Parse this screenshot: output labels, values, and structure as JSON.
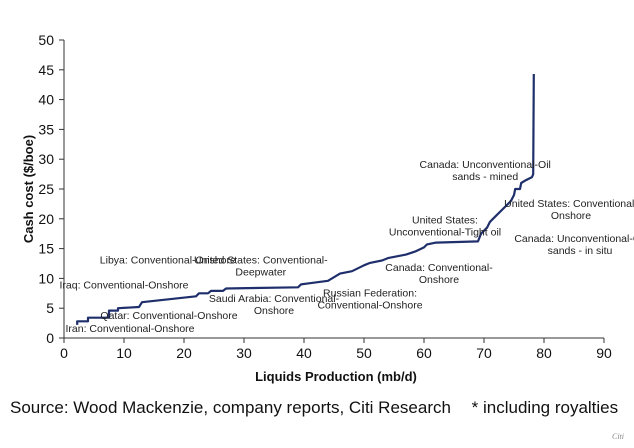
{
  "chart_data": {
    "type": "line",
    "title": "",
    "xlabel": "Liquids Production (mb/d)",
    "ylabel": "Cash cost ($/boe)",
    "xlim": [
      0,
      90
    ],
    "ylim": [
      0,
      50
    ],
    "x_ticks": [
      0,
      10,
      20,
      30,
      40,
      50,
      60,
      70,
      80,
      90
    ],
    "y_ticks": [
      0,
      5,
      10,
      15,
      20,
      25,
      30,
      35,
      40,
      45,
      50
    ],
    "grid": false,
    "line_color": "#1f2f6b",
    "series": [
      {
        "points": [
          [
            2.2,
            2.2
          ],
          [
            2.2,
            2.8
          ],
          [
            4.0,
            2.8
          ],
          [
            4.0,
            3.4
          ],
          [
            7.5,
            3.4
          ],
          [
            7.5,
            4.6
          ],
          [
            9.0,
            4.6
          ],
          [
            9.0,
            5.0
          ],
          [
            12.5,
            5.2
          ],
          [
            13.0,
            6.0
          ],
          [
            22.0,
            7.0
          ],
          [
            22.5,
            7.5
          ],
          [
            24.0,
            7.5
          ],
          [
            24.5,
            7.9
          ],
          [
            26.5,
            7.9
          ],
          [
            27.0,
            8.3
          ],
          [
            39.0,
            8.5
          ],
          [
            39.5,
            9.0
          ],
          [
            41.0,
            9.2
          ],
          [
            44.0,
            9.6
          ],
          [
            46.0,
            10.8
          ],
          [
            48.0,
            11.2
          ],
          [
            50.0,
            12.2
          ],
          [
            51.0,
            12.6
          ],
          [
            53.0,
            13.0
          ],
          [
            54.0,
            13.4
          ],
          [
            57.0,
            14.0
          ],
          [
            58.5,
            14.5
          ],
          [
            60.0,
            15.2
          ],
          [
            60.5,
            15.7
          ],
          [
            62.0,
            16.0
          ],
          [
            69.0,
            16.2
          ],
          [
            69.5,
            17.5
          ],
          [
            70.5,
            18.5
          ],
          [
            71.0,
            19.5
          ],
          [
            72.0,
            20.5
          ],
          [
            73.0,
            21.5
          ],
          [
            73.5,
            22.0
          ],
          [
            74.5,
            23.0
          ],
          [
            75.0,
            24.0
          ],
          [
            75.2,
            25.0
          ],
          [
            76.0,
            25.0
          ],
          [
            76.2,
            26.0
          ],
          [
            77.0,
            26.5
          ],
          [
            78.0,
            27.0
          ],
          [
            78.2,
            27.5
          ],
          [
            78.3,
            44.3
          ]
        ]
      }
    ],
    "annotations": [
      {
        "text": [
          "Canada: Unconventional-Oil",
          "sands - mined"
        ],
        "x": 70.2,
        "y": 28.5
      },
      {
        "text": [
          "United States: Conventional-",
          "Onshore"
        ],
        "x": 84.5,
        "y": 22.0
      },
      {
        "text": [
          "United States:",
          "Unconventional-Tight oil"
        ],
        "x": 63.5,
        "y": 19.2
      },
      {
        "text": [
          "Canada: Unconventional-Oil",
          "sands - in situ"
        ],
        "x": 86.0,
        "y": 16.1
      },
      {
        "text": [
          "Canada: Conventional-",
          "Onshore"
        ],
        "x": 62.5,
        "y": 11.2
      },
      {
        "text": [
          "Russian Federation:",
          "Conventional-Onshore"
        ],
        "x": 51.0,
        "y": 7.0
      },
      {
        "text": [
          "Saudi Arabia: Conventional-",
          "Onshore"
        ],
        "x": 35.0,
        "y": 6.0
      },
      {
        "text": [
          "United States: Conventional-",
          "Deepwater"
        ],
        "x": 32.8,
        "y": 12.5
      },
      {
        "text": [
          "Libya: Conventional-Onshore"
        ],
        "x": 17.3,
        "y": 12.5
      },
      {
        "text": [
          "Iraq: Conventional-Onshore"
        ],
        "x": 10.0,
        "y": 8.3
      },
      {
        "text": [
          "Qatar: Conventional-Onshore"
        ],
        "x": 17.5,
        "y": 3.2
      },
      {
        "text": [
          "Iran: Conventional-Onshore"
        ],
        "x": 11.0,
        "y": 1.0
      }
    ]
  },
  "footer": {
    "source": "Source: Wood Mackenzie, company reports, Citi Research",
    "note": "* including royalties",
    "brand": "Citi"
  }
}
